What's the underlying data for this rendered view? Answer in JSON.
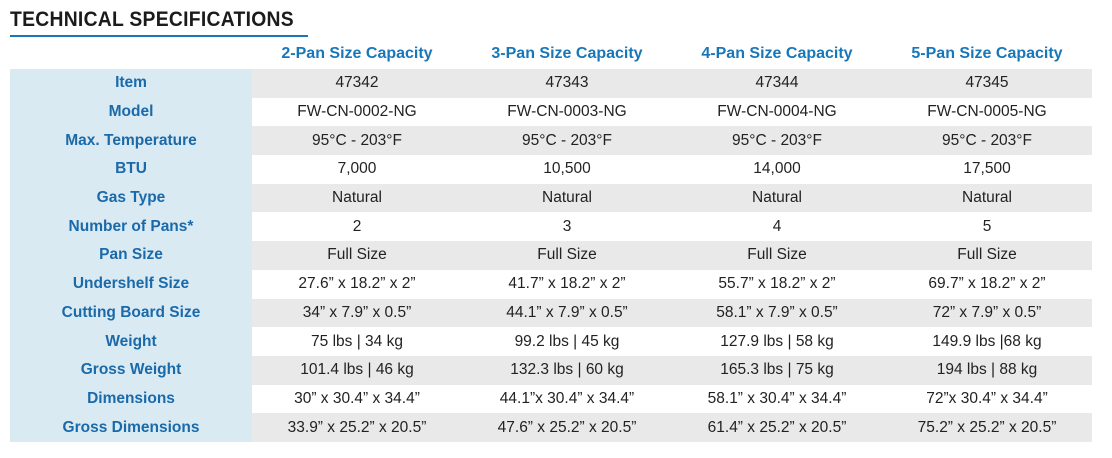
{
  "title": "TECHNICAL SPECIFICATIONS",
  "columns": [
    "2-Pan Size Capacity",
    "3-Pan Size Capacity",
    "4-Pan Size Capacity",
    "5-Pan Size Capacity"
  ],
  "rows": [
    {
      "label": "Item",
      "values": [
        "47342",
        "47343",
        "47344",
        "47345"
      ]
    },
    {
      "label": "Model",
      "values": [
        "FW-CN-0002-NG",
        "FW-CN-0003-NG",
        "FW-CN-0004-NG",
        "FW-CN-0005-NG"
      ]
    },
    {
      "label": "Max. Temperature",
      "values": [
        "95°C - 203°F",
        "95°C - 203°F",
        "95°C - 203°F",
        "95°C - 203°F"
      ]
    },
    {
      "label": "BTU",
      "values": [
        "7,000",
        "10,500",
        "14,000",
        "17,500"
      ]
    },
    {
      "label": "Gas Type",
      "values": [
        "Natural",
        "Natural",
        "Natural",
        "Natural"
      ]
    },
    {
      "label": "Number of Pans*",
      "values": [
        "2",
        "3",
        "4",
        "5"
      ]
    },
    {
      "label": "Pan Size",
      "values": [
        "Full Size",
        "Full Size",
        "Full Size",
        "Full Size"
      ]
    },
    {
      "label": "Undershelf Size",
      "values": [
        "27.6” x 18.2” x 2”",
        "41.7” x 18.2” x 2”",
        "55.7” x 18.2” x 2”",
        "69.7” x 18.2” x 2”"
      ]
    },
    {
      "label": "Cutting Board Size",
      "values": [
        "34” x 7.9” x 0.5”",
        "44.1” x 7.9” x 0.5”",
        "58.1” x 7.9” x 0.5”",
        "72” x 7.9” x 0.5”"
      ]
    },
    {
      "label": "Weight",
      "values": [
        "75 lbs | 34 kg",
        "99.2 lbs | 45 kg",
        "127.9 lbs | 58 kg",
        "149.9 lbs |68 kg"
      ]
    },
    {
      "label": "Gross Weight",
      "values": [
        "101.4 lbs | 46 kg",
        "132.3 lbs | 60 kg",
        "165.3 lbs | 75 kg",
        "194 lbs | 88 kg"
      ]
    },
    {
      "label": "Dimensions",
      "values": [
        "30” x 30.4” x 34.4”",
        "44.1”x 30.4” x 34.4”",
        "58.1” x 30.4” x 34.4”",
        "72”x 30.4” x 34.4”"
      ]
    },
    {
      "label": "Gross Dimensions",
      "values": [
        "33.9” x 25.2” x 20.5”",
        "47.6” x 25.2” x 20.5”",
        "61.4” x 25.2” x 20.5”",
        "75.2” x 25.2” x 20.5”"
      ]
    }
  ],
  "colors": {
    "accent": "#1877b8",
    "label_bg": "#daeaf3",
    "shade_bg": "#e9e9e9"
  }
}
